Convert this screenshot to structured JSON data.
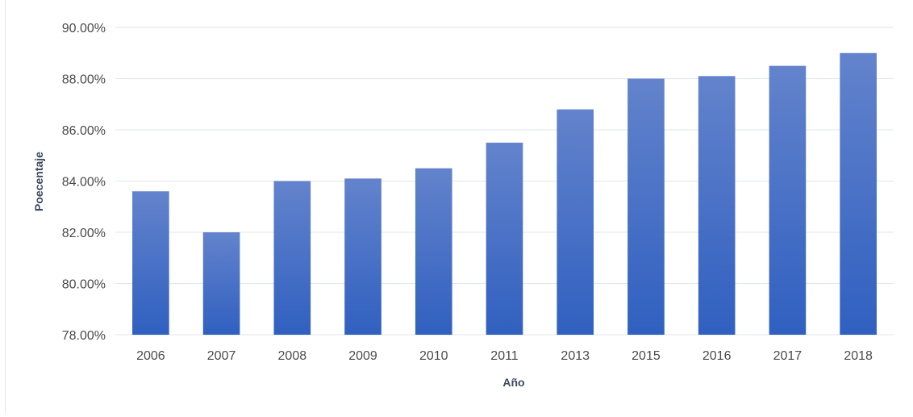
{
  "chart_data": {
    "type": "bar",
    "categories": [
      "2006",
      "2007",
      "2008",
      "2009",
      "2010",
      "2011",
      "2013",
      "2015",
      "2016",
      "2017",
      "2018"
    ],
    "values": [
      83.6,
      82.0,
      84.0,
      84.1,
      84.5,
      85.5,
      86.8,
      88.0,
      88.1,
      88.5,
      89.0
    ],
    "title": "",
    "xlabel": "Año",
    "ylabel": "Poecentaje",
    "ylim": [
      78,
      90
    ],
    "yticks": [
      "78.00%",
      "80.00%",
      "82.00%",
      "84.00%",
      "86.00%",
      "88.00%",
      "90.00%"
    ],
    "grid": true,
    "bar_color_top": "#6383cc",
    "bar_color_bottom": "#3060c0"
  }
}
